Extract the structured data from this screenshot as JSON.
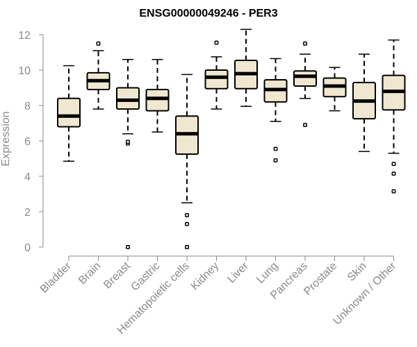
{
  "chart_data": {
    "type": "boxplot",
    "title": "ENSG00000049246 - PER3",
    "xlabel": "",
    "ylabel": "Expression",
    "ylim": [
      0,
      12.5
    ],
    "yticks": [
      0,
      2,
      4,
      6,
      8,
      10,
      12
    ],
    "categories": [
      "Bladder",
      "Brain",
      "Breast",
      "Gastric",
      "Hematopoietic cells",
      "Kidney",
      "Liver",
      "Lung",
      "Pancreas",
      "Prostate",
      "Skin",
      "Unknown / Other"
    ],
    "boxes": [
      {
        "category": "Bladder",
        "whisker_low": 4.85,
        "q1": 6.8,
        "median": 7.4,
        "q3": 8.4,
        "whisker_high": 10.25,
        "outliers": []
      },
      {
        "category": "Brain",
        "whisker_low": 7.8,
        "q1": 8.9,
        "median": 9.4,
        "q3": 9.85,
        "whisker_high": 11.1,
        "outliers": [
          11.5
        ]
      },
      {
        "category": "Breast",
        "whisker_low": 6.4,
        "q1": 7.8,
        "median": 8.3,
        "q3": 9.0,
        "whisker_high": 10.6,
        "outliers": [
          5.85,
          5.95,
          0.0
        ]
      },
      {
        "category": "Gastric",
        "whisker_low": 6.5,
        "q1": 7.7,
        "median": 8.4,
        "q3": 8.9,
        "whisker_high": 10.6,
        "outliers": []
      },
      {
        "category": "Hematopoietic cells",
        "whisker_low": 2.5,
        "q1": 5.25,
        "median": 6.4,
        "q3": 7.4,
        "whisker_high": 9.75,
        "outliers": [
          1.8,
          1.3,
          0.0
        ]
      },
      {
        "category": "Kidney",
        "whisker_low": 7.8,
        "q1": 8.95,
        "median": 9.6,
        "q3": 10.0,
        "whisker_high": 10.75,
        "outliers": [
          11.55
        ]
      },
      {
        "category": "Liver",
        "whisker_low": 7.95,
        "q1": 8.95,
        "median": 9.8,
        "q3": 10.55,
        "whisker_high": 12.3,
        "outliers": []
      },
      {
        "category": "Lung",
        "whisker_low": 7.1,
        "q1": 8.2,
        "median": 8.9,
        "q3": 9.45,
        "whisker_high": 10.65,
        "outliers": [
          5.55,
          4.9
        ]
      },
      {
        "category": "Pancreas",
        "whisker_low": 8.4,
        "q1": 9.1,
        "median": 9.65,
        "q3": 9.95,
        "whisker_high": 10.9,
        "outliers": [
          11.5,
          6.9
        ]
      },
      {
        "category": "Prostate",
        "whisker_low": 7.7,
        "q1": 8.5,
        "median": 9.1,
        "q3": 9.55,
        "whisker_high": 10.15,
        "outliers": []
      },
      {
        "category": "Skin",
        "whisker_low": 5.4,
        "q1": 7.25,
        "median": 8.25,
        "q3": 9.3,
        "whisker_high": 10.9,
        "outliers": []
      },
      {
        "category": "Unknown / Other",
        "whisker_low": 5.3,
        "q1": 7.75,
        "median": 8.8,
        "q3": 9.7,
        "whisker_high": 11.7,
        "outliers": [
          4.7,
          4.15,
          3.15
        ]
      }
    ],
    "grid": false,
    "legend": "none"
  },
  "colors": {
    "box_fill": "#efe7cf",
    "box_stroke": "#000000",
    "median": "#000000",
    "axis": "#8a8a8a",
    "title": "#000000"
  }
}
